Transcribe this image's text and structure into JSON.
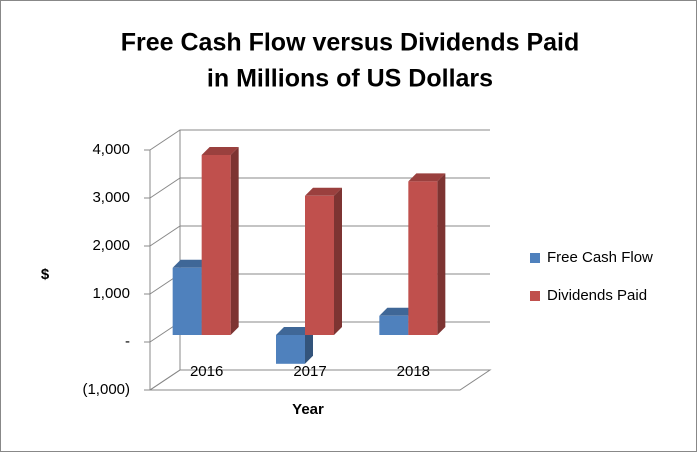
{
  "chart_data": {
    "type": "bar3d",
    "title": [
      "Free Cash Flow versus Dividends Paid",
      "in Millions of US Dollars"
    ],
    "y_label": "$",
    "x_label": "Year",
    "categories": [
      "2016",
      "2017",
      "2018"
    ],
    "series": [
      {
        "name": "Free Cash Flow",
        "color": "#4f81bd",
        "values": [
          1400,
          -600,
          400
        ]
      },
      {
        "name": "Dividends Paid",
        "color": "#c0504d",
        "values": [
          3750,
          2900,
          3200
        ]
      }
    ],
    "ylim": [
      -1000,
      4000
    ],
    "yticks": [
      {
        "value": -1000,
        "label": "(1,000)"
      },
      {
        "value": 0,
        "label": "-"
      },
      {
        "value": 1000,
        "label": "1,000"
      },
      {
        "value": 2000,
        "label": "2,000"
      },
      {
        "value": 3000,
        "label": "3,000"
      },
      {
        "value": 4000,
        "label": "4,000"
      }
    ],
    "grid": true,
    "legend": "right"
  }
}
